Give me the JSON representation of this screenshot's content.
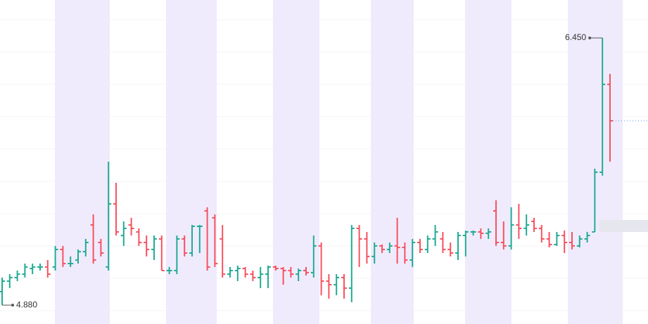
{
  "chart_data": {
    "type": "ohlc",
    "up_color": "#22ab94",
    "down_color": "#f7525f",
    "ylim": [
      4.769,
      6.673
    ],
    "open": [
      4.959,
      5.021,
      5.042,
      5.062,
      5.095,
      5.104,
      5.104,
      5.104,
      5.207,
      5.124,
      5.145,
      5.194,
      5.351,
      5.248,
      5.104,
      5.475,
      5.289,
      5.351,
      5.31,
      5.248,
      5.207,
      5.269,
      5.083,
      5.083,
      5.269,
      5.186,
      5.343,
      5.434,
      5.393,
      5.269,
      5.062,
      5.083,
      5.095,
      5.062,
      5.042,
      5.062,
      5.104,
      5.095,
      5.083,
      5.062,
      5.083,
      5.071,
      5.228,
      5.021,
      5.0,
      5.042,
      4.98,
      5.331,
      5.269,
      5.166,
      5.228,
      5.207,
      5.228,
      5.219,
      5.145,
      5.248,
      5.207,
      5.269,
      5.269,
      5.207,
      5.186,
      5.289,
      5.31,
      5.31,
      5.302,
      5.434,
      5.248,
      5.228,
      5.351,
      5.331,
      5.372,
      5.331,
      5.269,
      5.236,
      5.289,
      5.248,
      5.228,
      5.269,
      5.31,
      5.661,
      6.177
    ],
    "high": [
      5.042,
      5.062,
      5.083,
      5.124,
      5.124,
      5.124,
      5.145,
      5.228,
      5.228,
      5.166,
      5.207,
      5.269,
      5.413,
      5.269,
      5.723,
      5.599,
      5.372,
      5.393,
      5.331,
      5.289,
      5.289,
      5.289,
      5.104,
      5.289,
      5.289,
      5.351,
      5.351,
      5.455,
      5.413,
      5.351,
      5.104,
      5.112,
      5.104,
      5.083,
      5.104,
      5.112,
      5.112,
      5.104,
      5.104,
      5.095,
      5.104,
      5.289,
      5.248,
      5.062,
      5.062,
      5.062,
      5.351,
      5.351,
      5.31,
      5.248,
      5.236,
      5.248,
      5.393,
      5.248,
      5.269,
      5.269,
      5.289,
      5.351,
      5.31,
      5.248,
      5.31,
      5.318,
      5.318,
      5.331,
      5.331,
      5.496,
      5.372,
      5.455,
      5.475,
      5.413,
      5.393,
      5.351,
      5.31,
      5.31,
      5.318,
      5.31,
      5.289,
      5.31,
      5.682,
      6.45,
      6.239
    ],
    "low": [
      4.88,
      4.98,
      5.021,
      5.042,
      5.062,
      5.083,
      5.042,
      5.083,
      5.104,
      5.104,
      5.124,
      5.166,
      5.124,
      5.166,
      5.083,
      5.289,
      5.228,
      5.289,
      5.228,
      5.166,
      5.145,
      5.083,
      5.062,
      5.062,
      5.166,
      5.166,
      5.186,
      5.083,
      5.104,
      5.042,
      5.042,
      5.021,
      5.042,
      5.021,
      4.98,
      4.98,
      5.083,
      5.0,
      5.042,
      5.021,
      5.054,
      5.042,
      4.938,
      4.918,
      4.938,
      4.918,
      4.897,
      5.104,
      5.124,
      5.124,
      5.186,
      5.186,
      5.124,
      5.124,
      5.104,
      5.186,
      5.186,
      5.228,
      5.186,
      5.166,
      5.145,
      5.166,
      5.289,
      5.269,
      5.269,
      5.228,
      5.207,
      5.207,
      5.269,
      5.289,
      5.31,
      5.248,
      5.219,
      5.228,
      5.186,
      5.207,
      5.219,
      5.248,
      5.31,
      5.641,
      5.723
    ],
    "close": [
      5.021,
      5.042,
      5.062,
      5.104,
      5.104,
      5.104,
      5.062,
      5.207,
      5.124,
      5.124,
      5.194,
      5.248,
      5.145,
      5.186,
      5.475,
      5.31,
      5.331,
      5.331,
      5.248,
      5.207,
      5.269,
      5.083,
      5.083,
      5.269,
      5.186,
      5.343,
      5.343,
      5.104,
      5.124,
      5.062,
      5.083,
      5.095,
      5.062,
      5.042,
      5.062,
      5.104,
      5.095,
      5.083,
      5.062,
      5.083,
      5.071,
      5.228,
      5.021,
      5.0,
      5.042,
      4.98,
      5.331,
      5.269,
      5.166,
      5.228,
      5.207,
      5.228,
      5.219,
      5.145,
      5.248,
      5.207,
      5.269,
      5.31,
      5.207,
      5.186,
      5.289,
      5.31,
      5.31,
      5.302,
      5.31,
      5.248,
      5.228,
      5.351,
      5.331,
      5.351,
      5.331,
      5.269,
      5.236,
      5.289,
      5.248,
      5.228,
      5.269,
      5.289,
      5.661,
      6.177,
      5.963
    ],
    "annotations": [
      {
        "value": 6.45,
        "label": "6.450"
      },
      {
        "value": 4.88,
        "label": "4.880"
      }
    ]
  }
}
